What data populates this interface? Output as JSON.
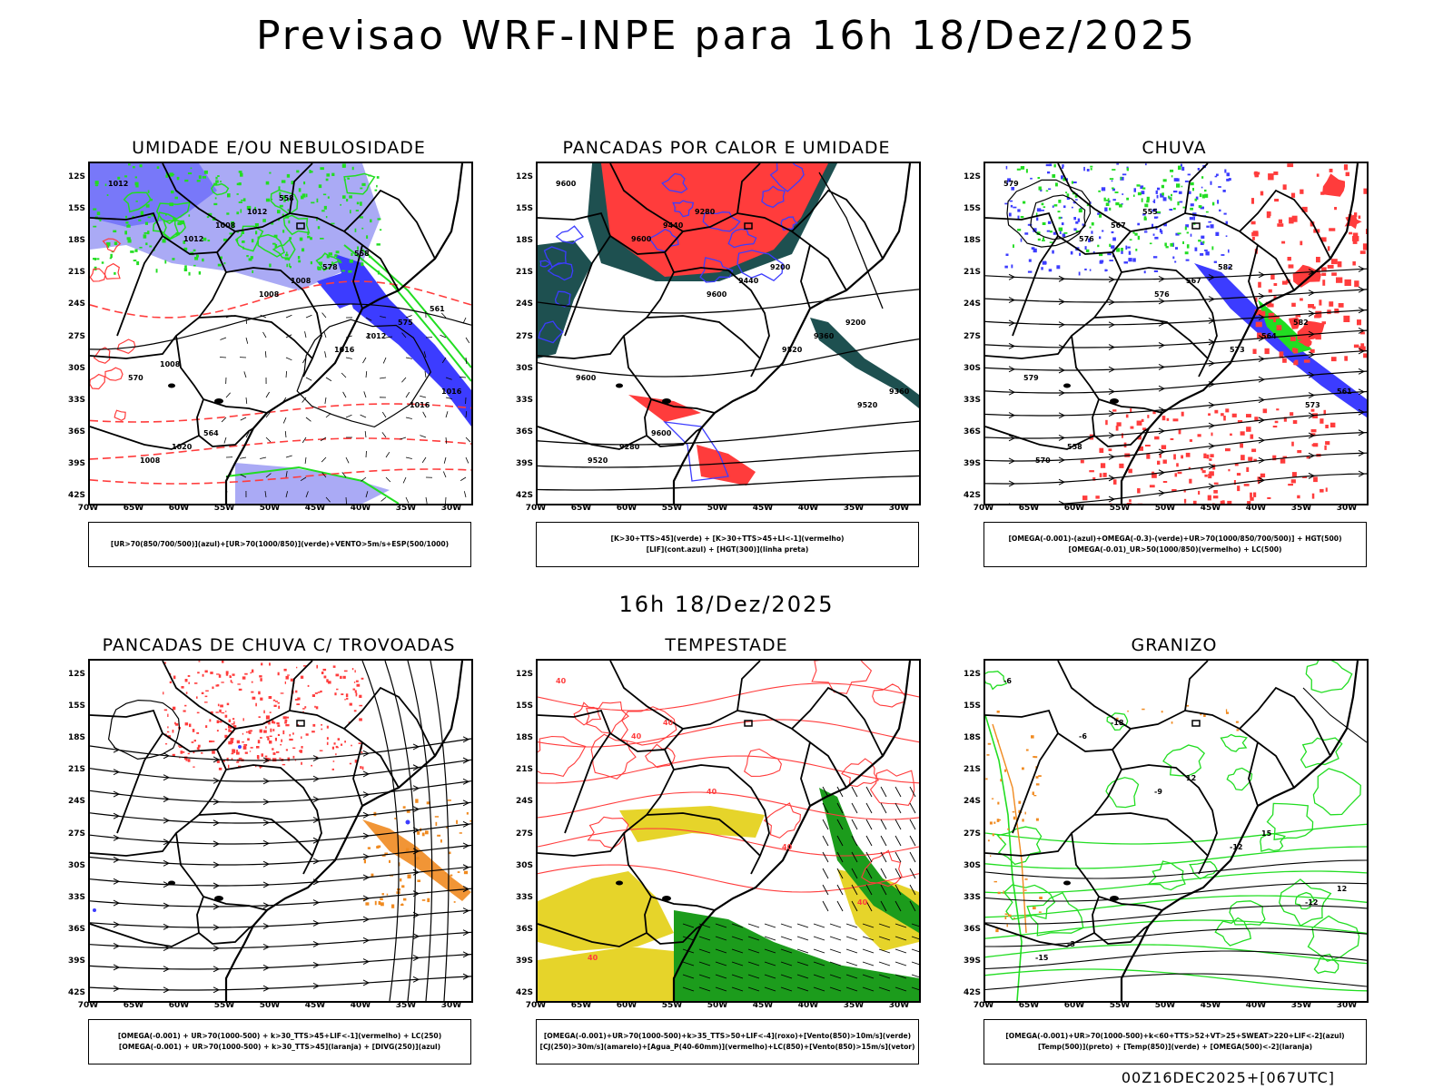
{
  "title": "Previsao WRF-INPE  para 16h 18/Dez/2025",
  "mid_time": "16h 18/Dez/2025",
  "footer": "00Z16DEC2025+[067UTC]",
  "lat_labels": [
    "12S",
    "15S",
    "18S",
    "21S",
    "24S",
    "27S",
    "30S",
    "33S",
    "36S",
    "39S",
    "42S"
  ],
  "lon_labels": [
    "70W",
    "65W",
    "60W",
    "55W",
    "50W",
    "45W",
    "40W",
    "35W",
    "30W"
  ],
  "colors": {
    "blue": "#3c3cff",
    "lavender": "#aaaaf5",
    "green": "#22dd22",
    "red": "#ff3c3c",
    "darkteal": "#1e5050",
    "yellow": "#e6d42a",
    "darkgreen": "#1c9c1c",
    "orange": "#f08a20"
  },
  "panels": [
    {
      "title": "UMIDADE E/OU NEBULOSIDADE",
      "legend": [
        "[UR>70(850/700/500)](azul)+[UR>70(1000/850)](verde)+VENTO>5m/s+ESP(500/1000)"
      ],
      "contour_labels": [
        "1012",
        "1012",
        "1008",
        "1016",
        "1016",
        "1008",
        "1008",
        "1008",
        "1012",
        "1016",
        "1020",
        "1012",
        "578",
        "575",
        "570",
        "564",
        "558",
        "558",
        "561",
        "1008"
      ]
    },
    {
      "title": "PANCADAS POR CALOR E UMIDADE",
      "legend": [
        "[K>30+TTS>45](verde) + [K>30+TTS>45+LI<-1](vermelho)",
        "[LIF](cont.azul) + [HGT(300)](linha preta)"
      ],
      "contour_labels": [
        "9600",
        "9600",
        "9600",
        "9520",
        "9520",
        "9520",
        "9440",
        "9440",
        "9360",
        "9360",
        "9280",
        "9280",
        "9200",
        "9200",
        "9600",
        "9600"
      ]
    },
    {
      "title": "CHUVA",
      "legend": [
        "[OMEGA(-0.001)-(azul)+OMEGA(-0.3)-(verde)+UR>70(1000/850/700/500)] + HGT(500)",
        "[OMEGA(-0.01)_UR>50(1000/850)(vermelho) + LC(500)"
      ],
      "contour_labels": [
        "579",
        "576",
        "576",
        "573",
        "573",
        "570",
        "567",
        "567",
        "564",
        "561",
        "558",
        "555",
        "582",
        "582",
        "579"
      ]
    },
    {
      "title": "PANCADAS DE CHUVA C/ TROVOADAS",
      "legend": [
        "[OMEGA(-0.001) + UR>70(1000-500) + k>30_TTS>45+LIF<-1](vermelho) + LC(250)",
        "[OMEGA(-0.001) + UR>70(1000-500) + k>30_TTS>45](laranja) + [DIVG(250)](azul)"
      ],
      "contour_labels": []
    },
    {
      "title": "TEMPESTADE",
      "legend": [
        "[OMEGA(-0.001)+UR>70(1000-500)+k>35_TTS>50+LIF<-4](roxo)+[Vento(850)>10m/s](verde)",
        "[CJ(250)>30m/s](amarelo)+[Agua_P(40-60mm)](vermelho)+LC(850)+[Vento(850)>15m/s](vetor)"
      ],
      "contour_labels": [
        "40",
        "40",
        "40",
        "40",
        "40",
        "40",
        "40"
      ]
    },
    {
      "title": "GRANIZO",
      "legend": [
        "[OMEGA(-0.001)+UR>70(1000-500)+k<60+TTS>52+VT>25+SWEAT>220+LIF<-2](azul)",
        "[Temp(500)](preto) + [Temp(850)](verde) + [OMEGA(500)<-2](laranja)"
      ],
      "contour_labels": [
        "-6",
        "-6",
        "-9",
        "-12",
        "-12",
        "-15",
        "-18",
        "12",
        "15",
        "12",
        "-3"
      ]
    }
  ]
}
